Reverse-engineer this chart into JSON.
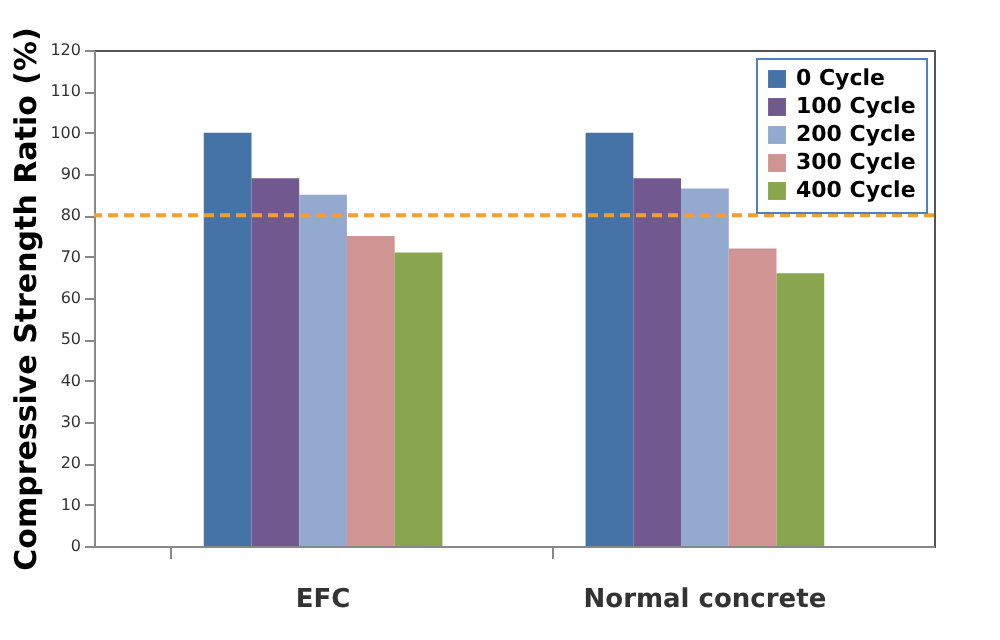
{
  "chart_data": {
    "type": "bar",
    "ylabel": "Compressive  Strength  Ratio  (%)",
    "categories": [
      "EFC",
      "Normal concrete"
    ],
    "series": [
      {
        "name": "0 Cycle",
        "color": "#4572a7",
        "values": [
          100,
          100
        ]
      },
      {
        "name": "100 Cycle",
        "color": "#71588f",
        "values": [
          89,
          89
        ]
      },
      {
        "name": "200 Cycle",
        "color": "#93a9cf",
        "values": [
          85,
          86.5
        ]
      },
      {
        "name": "300 Cycle",
        "color": "#d09493",
        "values": [
          75,
          72
        ]
      },
      {
        "name": "400 Cycle",
        "color": "#89a54e",
        "values": [
          71,
          66
        ]
      }
    ],
    "ylim": [
      0,
      120
    ],
    "yticks": [
      0,
      10,
      20,
      30,
      40,
      50,
      60,
      70,
      80,
      90,
      100,
      110,
      120
    ],
    "ref_lines": [
      {
        "axis": "y",
        "value": 80,
        "color": "#f0a030",
        "line_style": "dashed"
      }
    ],
    "grid": false,
    "legend": "top right"
  }
}
